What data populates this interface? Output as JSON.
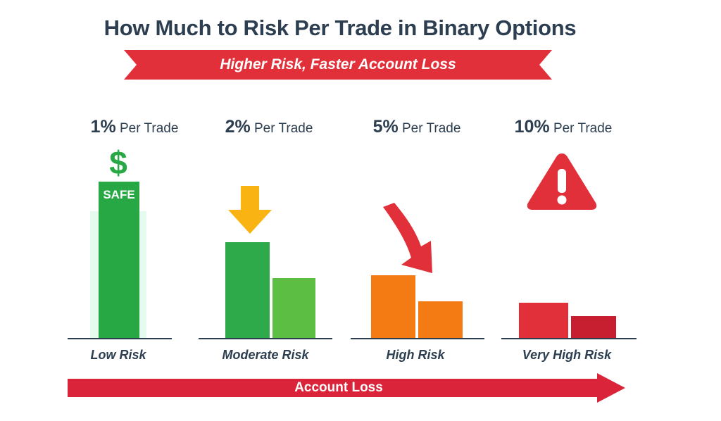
{
  "title": "How Much to Risk Per Trade in Binary Options",
  "subtitle": "Higher Risk, Faster Account Loss",
  "groups": [
    {
      "percent": "1%",
      "suffix": "Per Trade",
      "label": "Low Risk",
      "badge": "SAFE",
      "symbol": "$",
      "icon": "dollar-sign-icon",
      "color": "#27a844"
    },
    {
      "percent": "2%",
      "suffix": "Per Trade",
      "label": "Moderate Risk",
      "icon": "down-arrow-icon",
      "color": "#2eaa4a"
    },
    {
      "percent": "5%",
      "suffix": "Per Trade",
      "label": "High Risk",
      "icon": "diagonal-down-arrow-icon",
      "color": "#f47a14"
    },
    {
      "percent": "10%",
      "suffix": "Per Trade",
      "label": "Very High Risk",
      "icon": "warning-icon",
      "color": "#e2303a"
    }
  ],
  "bottom_arrow": {
    "label": "Account Loss",
    "color": "#d9243a"
  },
  "colors": {
    "title": "#2c3e50",
    "ribbon": "#e2303a",
    "green": "#27a844",
    "light_green": "#5cbf43",
    "orange": "#f47a14",
    "red": "#e2303a",
    "yellow": "#f9b312"
  }
}
